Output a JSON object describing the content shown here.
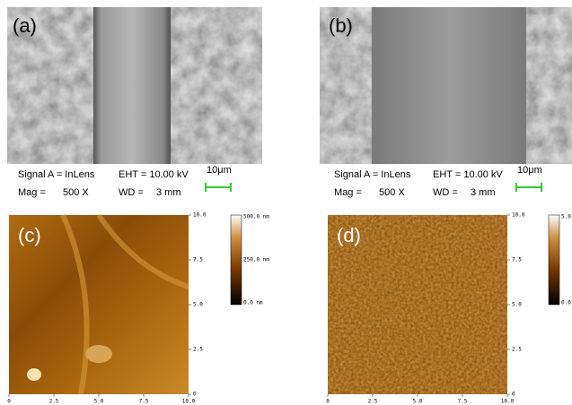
{
  "sem_panels": [
    {
      "label": "(a)",
      "signal": "Signal A = InLens",
      "eht": "EHT = 10.00 kV",
      "scale": "10μm",
      "mag_label": "Mag =",
      "mag": "500 X",
      "wd_label": "WD =",
      "wd": "3 mm"
    },
    {
      "label": "(b)",
      "signal": "Signal A = InLens",
      "eht": "EHT = 10.00 kV",
      "scale": "10μm",
      "mag_label": "Mag =",
      "mag": "500 X",
      "wd_label": "WD =",
      "wd": "3 mm"
    }
  ],
  "afm_panels": [
    {
      "label": "(c)",
      "x_ticks": [
        "0",
        "2.5",
        "5.0",
        "7.5",
        "10.0"
      ],
      "y_ticks": [
        "10.0",
        "7.5",
        "5.0",
        "2.5",
        "0"
      ],
      "colorbar_labels": [
        "500.0 nm",
        "250.0 nm",
        "0.0 nm"
      ]
    },
    {
      "label": "(d)",
      "x_ticks": [
        "0",
        "2.5",
        "5.0",
        "7.5",
        "10.0"
      ],
      "y_ticks": [
        "10.0",
        "7.5",
        "5.0",
        "2.5",
        "0"
      ],
      "colorbar_labels": [
        "5.0",
        "0.0"
      ]
    }
  ]
}
